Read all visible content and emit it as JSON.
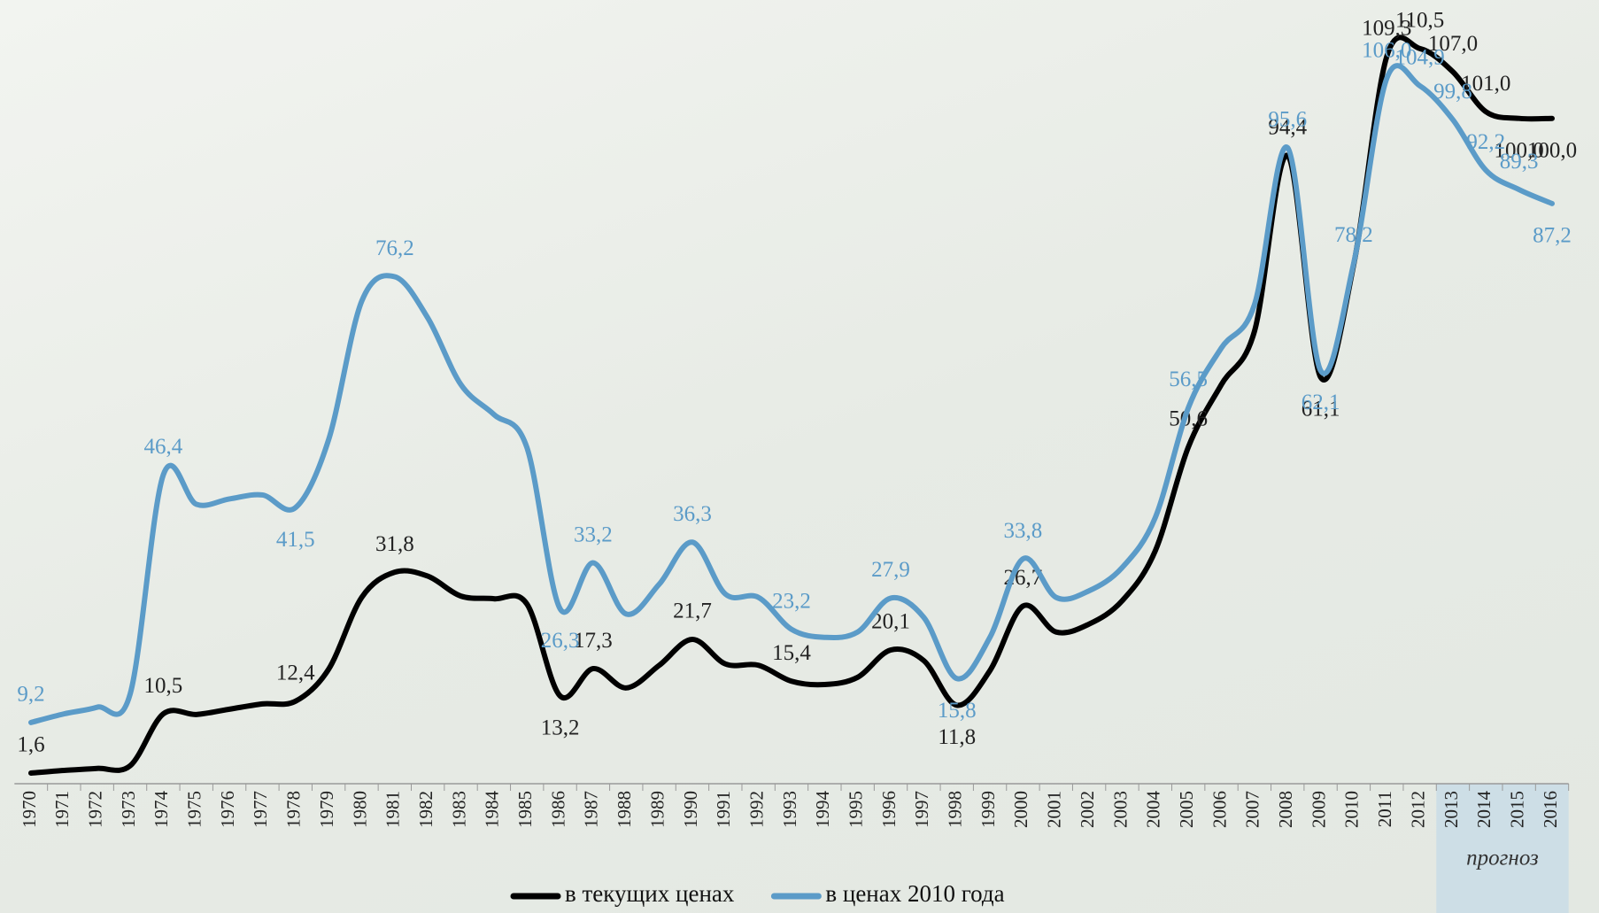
{
  "chart_data": {
    "type": "line",
    "categories": [
      "1970",
      "1971",
      "1972",
      "1973",
      "1974",
      "1975",
      "1976",
      "1977",
      "1978",
      "1979",
      "1980",
      "1981",
      "1982",
      "1983",
      "1984",
      "1985",
      "1986",
      "1987",
      "1988",
      "1989",
      "1990",
      "1991",
      "1992",
      "1993",
      "1994",
      "1995",
      "1996",
      "1997",
      "1998",
      "1999",
      "2000",
      "2001",
      "2002",
      "2003",
      "2004",
      "2005",
      "2006",
      "2007",
      "2008",
      "2009",
      "2010",
      "2011",
      "2012",
      "2013",
      "2014",
      "2015",
      "2016"
    ],
    "ylim": [
      0,
      115
    ],
    "grid": false,
    "legend": "bottom",
    "forecast": {
      "label": "прогноз",
      "from": "2013",
      "to": "2016"
    },
    "series": [
      {
        "name": "в текущих ценах",
        "color": "#000000",
        "values": [
          1.6,
          2.0,
          2.3,
          2.7,
          10.5,
          10.4,
          11.2,
          12.0,
          12.4,
          17.2,
          28.0,
          31.8,
          31.2,
          28.2,
          27.8,
          27.0,
          13.2,
          17.3,
          14.4,
          17.8,
          21.7,
          18.0,
          17.8,
          15.4,
          14.9,
          16.0,
          20.1,
          18.5,
          11.8,
          17.0,
          26.7,
          22.8,
          24.0,
          27.5,
          35.0,
          50.6,
          60.0,
          68.0,
          94.4,
          61.1,
          78.0,
          109.3,
          110.5,
          107.0,
          101.0,
          100.0,
          100.0
        ],
        "value_labels": [
          "1,6",
          null,
          null,
          null,
          "10,5",
          null,
          null,
          null,
          "12,4",
          null,
          null,
          "31,8",
          null,
          null,
          null,
          null,
          "13,2",
          "17,3",
          null,
          null,
          "21,7",
          null,
          null,
          "15,4",
          null,
          null,
          "20,1",
          null,
          "11,8",
          null,
          "26,7",
          null,
          null,
          null,
          null,
          "50,6",
          null,
          null,
          "94,4",
          "61,1",
          null,
          "109,3",
          "110,5",
          "107,0",
          "101,0",
          "100,0",
          "100,0"
        ]
      },
      {
        "name": "в ценах 2010 года",
        "color": "#5b9bc8",
        "values": [
          9.2,
          10.5,
          11.5,
          13.5,
          46.4,
          42.0,
          42.8,
          43.4,
          41.5,
          51.7,
          72.5,
          76.2,
          70.0,
          60.0,
          55.5,
          50.5,
          26.3,
          33.2,
          25.5,
          30.0,
          36.3,
          28.5,
          28.0,
          23.2,
          22.0,
          22.8,
          27.9,
          25.0,
          15.8,
          22.0,
          33.8,
          28.0,
          29.0,
          32.5,
          40.0,
          56.5,
          65.5,
          72.0,
          95.6,
          62.1,
          78.2,
          106.0,
          104.9,
          99.8,
          92.2,
          89.3,
          87.2
        ],
        "value_labels": [
          "9,2",
          null,
          null,
          null,
          "46,4",
          null,
          null,
          null,
          "41,5",
          null,
          null,
          "76,2",
          null,
          null,
          null,
          null,
          "26,3",
          "33,2",
          null,
          null,
          "36,3",
          null,
          null,
          "23,2",
          null,
          null,
          "27,9",
          null,
          "15,8",
          null,
          "33,8",
          null,
          null,
          null,
          null,
          "56,5",
          null,
          null,
          "95,6",
          "62,1",
          "78,2",
          "106,0",
          "104,9",
          "99,8",
          "92,2",
          "89,3",
          "87,2"
        ]
      }
    ]
  }
}
